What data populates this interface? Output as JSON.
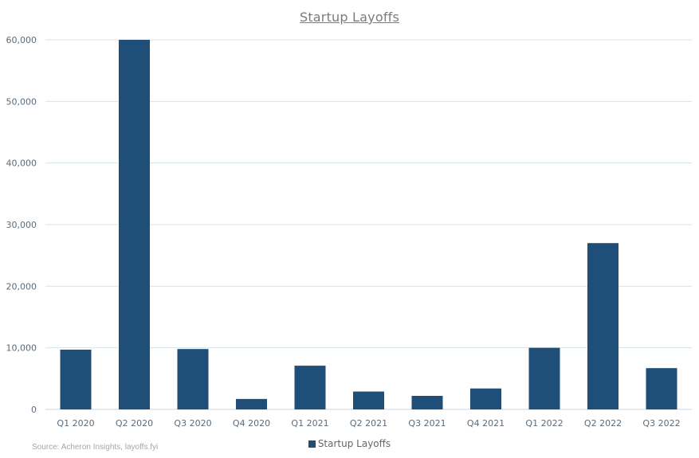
{
  "source_note": "Source: Acheron Insights, layoffs.fyi",
  "colors": {
    "bar": "#1f4e79",
    "grid": "#d6e4ea",
    "axis_text": "#5b6b7a",
    "title": "#7b7b7b"
  },
  "chart_data": {
    "type": "bar",
    "title": "Startup Layoffs",
    "xlabel": "",
    "ylabel": "",
    "categories": [
      "Q1 2020",
      "Q2 2020",
      "Q3 2020",
      "Q4 2020",
      "Q1 2021",
      "Q2 2021",
      "Q3 2021",
      "Q4 2021",
      "Q1 2022",
      "Q2 2022",
      "Q3 2022"
    ],
    "series": [
      {
        "name": "Startup Layoffs",
        "values": [
          9700,
          60000,
          9800,
          1700,
          7100,
          2900,
          2200,
          3400,
          10000,
          27000,
          6700
        ]
      }
    ],
    "ylim": [
      0,
      60000
    ],
    "yticks": [
      0,
      10000,
      20000,
      30000,
      40000,
      50000,
      60000
    ],
    "ytick_labels": [
      "0",
      "10,000",
      "20,000",
      "30,000",
      "40,000",
      "50,000",
      "60,000"
    ],
    "grid": true,
    "legend_position": "bottom"
  }
}
